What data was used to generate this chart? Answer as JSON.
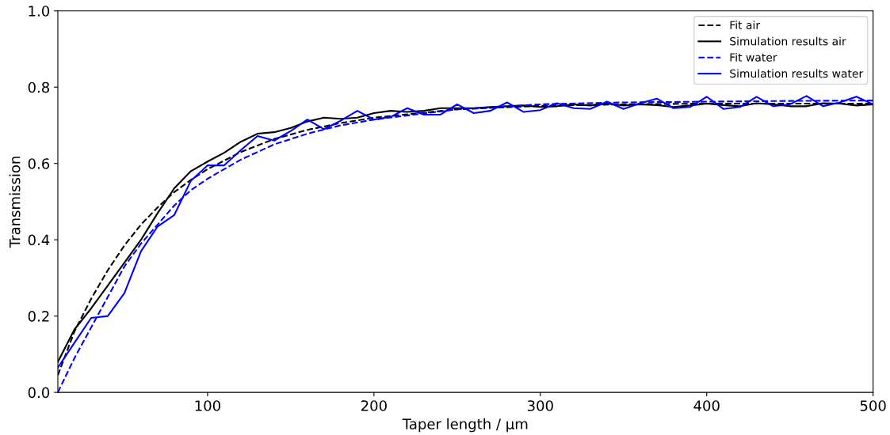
{
  "chart_data": {
    "type": "line",
    "xlabel": "Taper length / µm",
    "ylabel": "Transmission",
    "xlim": [
      10,
      500
    ],
    "xticks": [
      100,
      200,
      300,
      400,
      500
    ],
    "ylim": [
      0,
      1.0
    ],
    "yticks": [
      {
        "value": 0,
        "label": "0.0"
      },
      0.2,
      0.4,
      0.6,
      0.8,
      {
        "value": 1.0,
        "label": "1.0"
      }
    ],
    "legend": "top right",
    "grid": false,
    "series": [
      {
        "name": "Fit air",
        "color": "#000000",
        "line_style": "dashed",
        "x": [
          10,
          20,
          30,
          40,
          50,
          60,
          70,
          80,
          90,
          100,
          120,
          140,
          160,
          180,
          200,
          250,
          300,
          350,
          400,
          450,
          500
        ],
        "values": [
          0.045,
          0.16,
          0.245,
          0.32,
          0.385,
          0.44,
          0.485,
          0.525,
          0.557,
          0.585,
          0.63,
          0.664,
          0.688,
          0.706,
          0.72,
          0.742,
          0.751,
          0.755,
          0.757,
          0.757,
          0.757
        ]
      },
      {
        "name": "Simulation results air",
        "color": "#000000",
        "line_style": "solid",
        "x": [
          10,
          20,
          30,
          40,
          50,
          60,
          70,
          80,
          90,
          100,
          110,
          120,
          130,
          140,
          150,
          160,
          170,
          180,
          190,
          200,
          210,
          220,
          230,
          240,
          250,
          260,
          270,
          280,
          290,
          300,
          310,
          320,
          330,
          340,
          350,
          360,
          370,
          380,
          390,
          400,
          410,
          420,
          430,
          440,
          450,
          460,
          470,
          480,
          490,
          500
        ],
        "values": [
          0.08,
          0.165,
          0.22,
          0.28,
          0.34,
          0.4,
          0.47,
          0.535,
          0.58,
          0.605,
          0.628,
          0.657,
          0.678,
          0.682,
          0.693,
          0.71,
          0.72,
          0.717,
          0.72,
          0.732,
          0.738,
          0.735,
          0.738,
          0.745,
          0.745,
          0.745,
          0.748,
          0.75,
          0.752,
          0.748,
          0.75,
          0.755,
          0.752,
          0.757,
          0.752,
          0.755,
          0.753,
          0.748,
          0.752,
          0.757,
          0.753,
          0.75,
          0.758,
          0.755,
          0.75,
          0.75,
          0.758,
          0.757,
          0.752,
          0.755
        ]
      },
      {
        "name": "Fit water",
        "color": "#0000ff",
        "line_style": "dashed",
        "x": [
          10,
          20,
          30,
          40,
          50,
          60,
          70,
          80,
          90,
          100,
          120,
          140,
          160,
          180,
          200,
          250,
          300,
          350,
          400,
          450,
          500
        ],
        "values": [
          0.0,
          0.09,
          0.17,
          0.25,
          0.33,
          0.39,
          0.44,
          0.49,
          0.53,
          0.56,
          0.61,
          0.65,
          0.678,
          0.7,
          0.715,
          0.742,
          0.755,
          0.76,
          0.762,
          0.764,
          0.765
        ]
      },
      {
        "name": "Simulation results water",
        "color": "#0000ff",
        "line_style": "solid",
        "x": [
          10,
          20,
          30,
          40,
          50,
          60,
          70,
          80,
          90,
          100,
          110,
          120,
          130,
          140,
          150,
          160,
          170,
          180,
          190,
          200,
          210,
          220,
          230,
          240,
          250,
          260,
          270,
          280,
          290,
          300,
          310,
          320,
          330,
          340,
          350,
          360,
          370,
          380,
          390,
          400,
          410,
          420,
          430,
          440,
          450,
          460,
          470,
          480,
          490,
          500
        ],
        "values": [
          0.065,
          0.13,
          0.195,
          0.2,
          0.26,
          0.37,
          0.435,
          0.465,
          0.555,
          0.595,
          0.595,
          0.635,
          0.672,
          0.66,
          0.685,
          0.715,
          0.69,
          0.712,
          0.738,
          0.715,
          0.722,
          0.745,
          0.728,
          0.728,
          0.755,
          0.732,
          0.738,
          0.76,
          0.735,
          0.74,
          0.758,
          0.745,
          0.743,
          0.762,
          0.743,
          0.758,
          0.77,
          0.745,
          0.748,
          0.775,
          0.743,
          0.748,
          0.775,
          0.75,
          0.755,
          0.777,
          0.75,
          0.76,
          0.775,
          0.755
        ]
      }
    ]
  }
}
